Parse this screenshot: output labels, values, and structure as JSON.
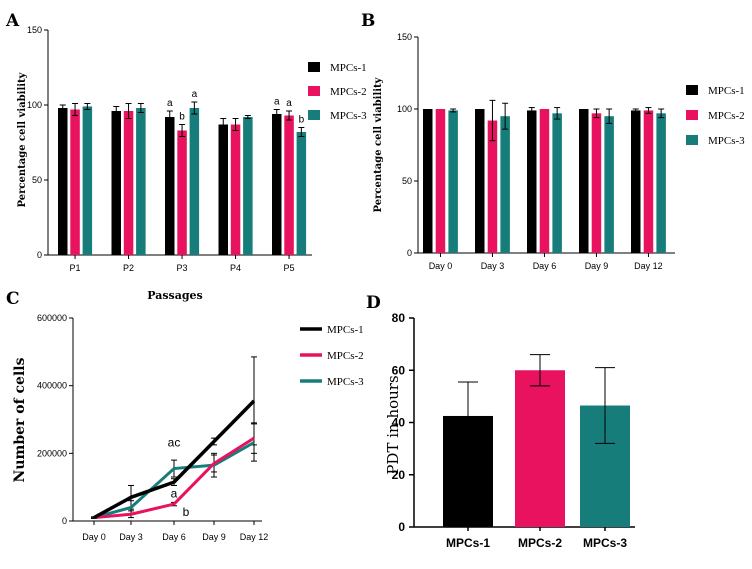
{
  "colors": {
    "mpc1": "#000000",
    "mpc2": "#e8125f",
    "mpc3": "#167d7a"
  },
  "chart_data": [
    {
      "panel": "A",
      "type": "bar",
      "ylabel": "Percentage cell viability",
      "xlabel": "Passages",
      "ylim": [
        0,
        150
      ],
      "yticks": [
        "0",
        "50",
        "100",
        "150"
      ],
      "categories": [
        "P1",
        "P2",
        "P3",
        "P4",
        "P5"
      ],
      "series": [
        {
          "name": "MPCs-1",
          "values": [
            98,
            96,
            92,
            87,
            94
          ],
          "errors": [
            2,
            3,
            4,
            4,
            3
          ]
        },
        {
          "name": "MPCs-2",
          "values": [
            97,
            96,
            83,
            87,
            93
          ],
          "errors": [
            4,
            5,
            4,
            4,
            3
          ]
        },
        {
          "name": "MPCs-3",
          "values": [
            99,
            98,
            98,
            92,
            82
          ],
          "errors": [
            2,
            3,
            4,
            1,
            3
          ]
        }
      ],
      "annotations": [
        {
          "text": "a",
          "category": 2,
          "series": 0
        },
        {
          "text": "b",
          "category": 2,
          "series": 1
        },
        {
          "text": "a",
          "category": 2,
          "series": 2
        },
        {
          "text": "a",
          "category": 4,
          "series": 0
        },
        {
          "text": "a",
          "category": 4,
          "series": 1
        },
        {
          "text": "b",
          "category": 4,
          "series": 2
        }
      ]
    },
    {
      "panel": "B",
      "type": "bar",
      "ylabel": "Percentage cell viability",
      "ylim": [
        0,
        150
      ],
      "yticks": [
        "0",
        "50",
        "100",
        "150"
      ],
      "categories": [
        "Day 0",
        "Day 3",
        "Day 6",
        "Day 9",
        "Day 12"
      ],
      "series": [
        {
          "name": "MPCs-1",
          "values": [
            100,
            100,
            99,
            100,
            99
          ],
          "errors": [
            0,
            0,
            2,
            0,
            1
          ]
        },
        {
          "name": "MPCs-2",
          "values": [
            100,
            92,
            100,
            97,
            99
          ],
          "errors": [
            0,
            14,
            0,
            3,
            2
          ]
        },
        {
          "name": "MPCs-3",
          "values": [
            99,
            95,
            97,
            95,
            97
          ],
          "errors": [
            1,
            9,
            4,
            5,
            3
          ]
        }
      ]
    },
    {
      "panel": "C",
      "type": "line",
      "ylabel": "Number of cells",
      "ylim": [
        0,
        600000
      ],
      "yticks": [
        "0",
        "200000",
        "400000",
        "600000"
      ],
      "categories": [
        "Day 0",
        "Day 3",
        "Day 6",
        "Day 9",
        "Day 12"
      ],
      "series": [
        {
          "name": "MPCs-1",
          "values": [
            10000,
            70000,
            115000,
            235000,
            355000
          ],
          "errors": [
            2000,
            35000,
            10000,
            10000,
            130000
          ]
        },
        {
          "name": "MPCs-2",
          "values": [
            10000,
            20000,
            50000,
            170000,
            245000
          ],
          "errors": [
            2000,
            10000,
            5000,
            25000,
            45000
          ]
        },
        {
          "name": "MPCs-3",
          "values": [
            10000,
            40000,
            155000,
            165000,
            232000
          ],
          "errors": [
            2000,
            20000,
            25000,
            35000,
            55000
          ]
        }
      ],
      "annotations": [
        {
          "text": "ac",
          "category": 2,
          "value": 220000
        },
        {
          "text": "a",
          "category": 2,
          "value": 70000
        },
        {
          "text": "b",
          "category": 2,
          "value": 15000
        }
      ]
    },
    {
      "panel": "D",
      "type": "bar",
      "ylabel": "PDT in hours",
      "ylim": [
        0,
        80
      ],
      "yticks": [
        "0",
        "20",
        "40",
        "60",
        "80"
      ],
      "categories": [
        "MPCs-1",
        "MPCs-2",
        "MPCs-3"
      ],
      "values": [
        42.5,
        60,
        46.5
      ],
      "errors": [
        13,
        6,
        14.5
      ]
    }
  ]
}
